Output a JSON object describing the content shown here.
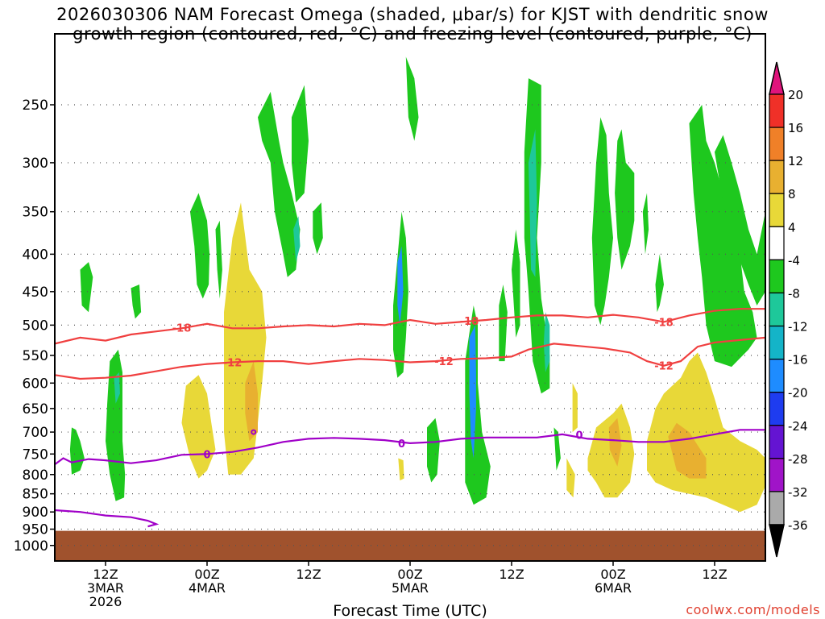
{
  "chart_data": {
    "type": "heatmap",
    "title_lines": [
      "2026030306 NAM Forecast Omega (shaded, μbar/s) for KJST with dendritic snow",
      "growth region (contoured, red, °C) and freezing level (contoured, purple, °C)"
    ],
    "xlabel": "Forecast Time (UTC)",
    "ylabel": "",
    "x_unit": "hours since 2026-03-03 06Z",
    "xlim": [
      0,
      84
    ],
    "ylim": [
      1050,
      200
    ],
    "y_ticks": [
      250,
      300,
      350,
      400,
      450,
      500,
      550,
      600,
      650,
      700,
      750,
      800,
      850,
      900,
      950,
      1000
    ],
    "x_ticks": [
      {
        "hour": 6,
        "lines": [
          "12Z",
          "3MAR",
          "2026"
        ]
      },
      {
        "hour": 18,
        "lines": [
          "00Z",
          "4MAR"
        ]
      },
      {
        "hour": 30,
        "lines": [
          "12Z"
        ]
      },
      {
        "hour": 42,
        "lines": [
          "00Z",
          "5MAR"
        ]
      },
      {
        "hour": 54,
        "lines": [
          "12Z"
        ]
      },
      {
        "hour": 66,
        "lines": [
          "00Z",
          "6MAR"
        ]
      },
      {
        "hour": 78,
        "lines": [
          "12Z"
        ]
      }
    ],
    "colorbar": {
      "labels": [
        "20",
        "16",
        "12",
        "8",
        "4",
        "-4",
        "-8",
        "-12",
        "-16",
        "-20",
        "-24",
        "-28",
        "-32",
        "-36"
      ],
      "colors": [
        "#f03028",
        "#f08028",
        "#e8b030",
        "#e8d838",
        "#ffffff",
        "#1ec81e",
        "#1ec89a",
        "#14b4c8",
        "#1e8cff",
        "#1e3cf0",
        "#6414d2",
        "#a014c8",
        "#aaaaaa"
      ],
      "top_color": "#e0147c",
      "bottom_color": "#000000"
    },
    "shading_colors": {
      "yellow": "#e8d838",
      "orange": "#e8b030",
      "green": "#1ec81e",
      "teal": "#1ec89a",
      "cyan": "#14b4c8",
      "blue": "#1e8cff",
      "ground": "#a0522d"
    },
    "ground_top_hpa": 955,
    "contours": [
      {
        "name": "-18C isotherm",
        "label": "-18",
        "color": "#f04040",
        "points": [
          [
            0,
            530
          ],
          [
            3,
            520
          ],
          [
            6,
            525
          ],
          [
            9,
            515
          ],
          [
            12,
            510
          ],
          [
            15,
            505
          ],
          [
            18,
            498
          ],
          [
            21,
            505
          ],
          [
            24,
            505
          ],
          [
            27,
            502
          ],
          [
            30,
            500
          ],
          [
            33,
            502
          ],
          [
            36,
            498
          ],
          [
            39,
            500
          ],
          [
            42,
            492
          ],
          [
            45,
            498
          ],
          [
            48,
            495
          ],
          [
            51,
            492
          ],
          [
            54,
            488
          ],
          [
            57,
            485
          ],
          [
            60,
            485
          ],
          [
            63,
            488
          ],
          [
            66,
            484
          ],
          [
            69,
            488
          ],
          [
            72,
            495
          ],
          [
            75,
            485
          ],
          [
            78,
            478
          ],
          [
            81,
            475
          ],
          [
            84,
            475
          ]
        ],
        "label_points": [
          [
            15,
            504
          ],
          [
            49,
            493
          ],
          [
            72,
            495
          ]
        ]
      },
      {
        "name": "-12C isotherm",
        "label": "-12",
        "color": "#f04040",
        "points": [
          [
            0,
            585
          ],
          [
            3,
            592
          ],
          [
            6,
            590
          ],
          [
            9,
            586
          ],
          [
            12,
            578
          ],
          [
            15,
            570
          ],
          [
            18,
            565
          ],
          [
            21,
            562
          ],
          [
            24,
            560
          ],
          [
            27,
            560
          ],
          [
            30,
            565
          ],
          [
            33,
            560
          ],
          [
            36,
            556
          ],
          [
            39,
            558
          ],
          [
            42,
            562
          ],
          [
            45,
            560
          ],
          [
            48,
            556
          ],
          [
            51,
            555
          ],
          [
            54,
            552
          ],
          [
            56,
            540
          ],
          [
            59,
            530
          ],
          [
            62,
            534
          ],
          [
            65,
            538
          ],
          [
            68,
            545
          ],
          [
            70,
            560
          ],
          [
            72,
            568
          ],
          [
            74,
            560
          ],
          [
            76,
            535
          ],
          [
            78,
            528
          ],
          [
            81,
            524
          ],
          [
            84,
            520
          ]
        ],
        "label_points": [
          [
            21,
            562
          ],
          [
            46,
            560
          ],
          [
            72,
            568
          ]
        ]
      },
      {
        "name": "0C freezing level",
        "label": "0",
        "color": "#a000c8",
        "points": [
          [
            0,
            775
          ],
          [
            1,
            760
          ],
          [
            2,
            770
          ],
          [
            4,
            762
          ],
          [
            6,
            765
          ],
          [
            9,
            772
          ],
          [
            12,
            765
          ],
          [
            15,
            752
          ],
          [
            18,
            750
          ],
          [
            21,
            745
          ],
          [
            24,
            735
          ],
          [
            27,
            722
          ],
          [
            30,
            715
          ],
          [
            33,
            713
          ],
          [
            36,
            715
          ],
          [
            39,
            718
          ],
          [
            42,
            725
          ],
          [
            45,
            722
          ],
          [
            48,
            715
          ],
          [
            51,
            712
          ],
          [
            54,
            712
          ],
          [
            57,
            712
          ],
          [
            60,
            705
          ],
          [
            63,
            715
          ],
          [
            66,
            718
          ],
          [
            69,
            722
          ],
          [
            72,
            722
          ],
          [
            75,
            715
          ],
          [
            78,
            705
          ],
          [
            81,
            695
          ],
          [
            84,
            695
          ]
        ],
        "label_points": [
          [
            18,
            750
          ],
          [
            41,
            725
          ],
          [
            62,
            706
          ]
        ]
      },
      {
        "name": "0C freezing level (lower)",
        "label": "",
        "color": "#a000c8",
        "points": [
          [
            0,
            895
          ],
          [
            3,
            900
          ],
          [
            6,
            910
          ],
          [
            9,
            915
          ],
          [
            11,
            925
          ],
          [
            12,
            935
          ],
          [
            11,
            942
          ]
        ],
        "label_points": []
      }
    ]
  },
  "credit": "coolwx.com/models"
}
